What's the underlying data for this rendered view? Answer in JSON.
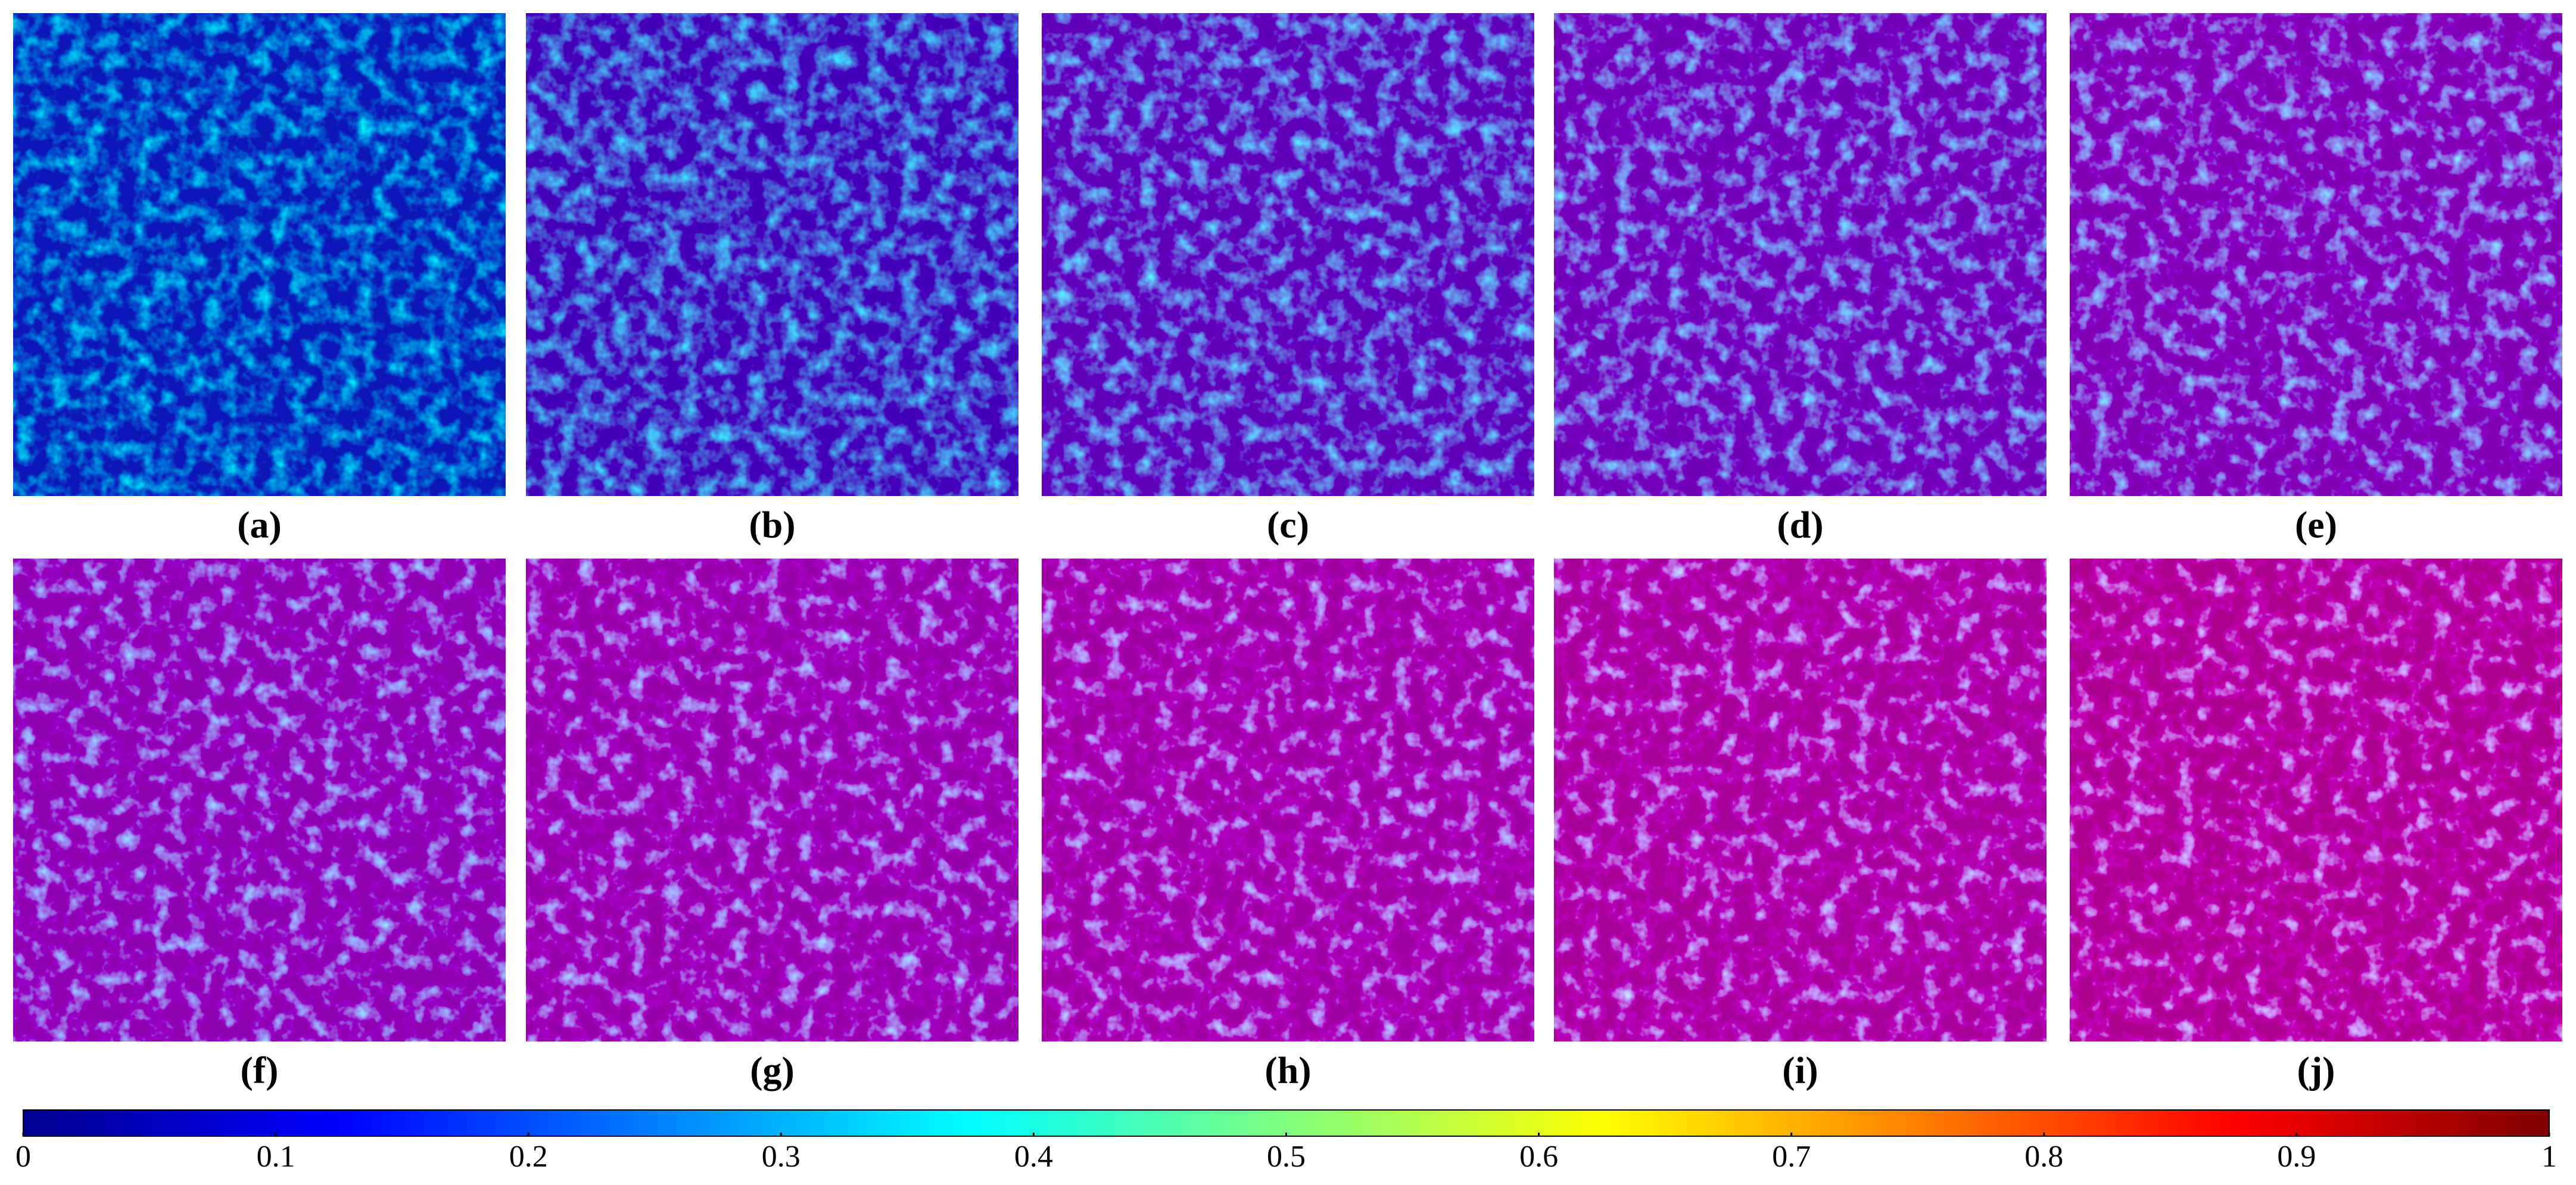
{
  "panels": [
    {
      "label": "(a)"
    },
    {
      "label": "(b)"
    },
    {
      "label": "(c)"
    },
    {
      "label": "(d)"
    },
    {
      "label": "(e)"
    },
    {
      "label": "(f)"
    },
    {
      "label": "(g)"
    },
    {
      "label": "(h)"
    },
    {
      "label": "(i)"
    },
    {
      "label": "(j)"
    }
  ],
  "colorbar": {
    "lim": [
      0,
      1
    ],
    "ticks": [
      0,
      0.1,
      0.2,
      0.3,
      0.4,
      0.5,
      0.6,
      0.7,
      0.8,
      0.9,
      1
    ]
  }
}
